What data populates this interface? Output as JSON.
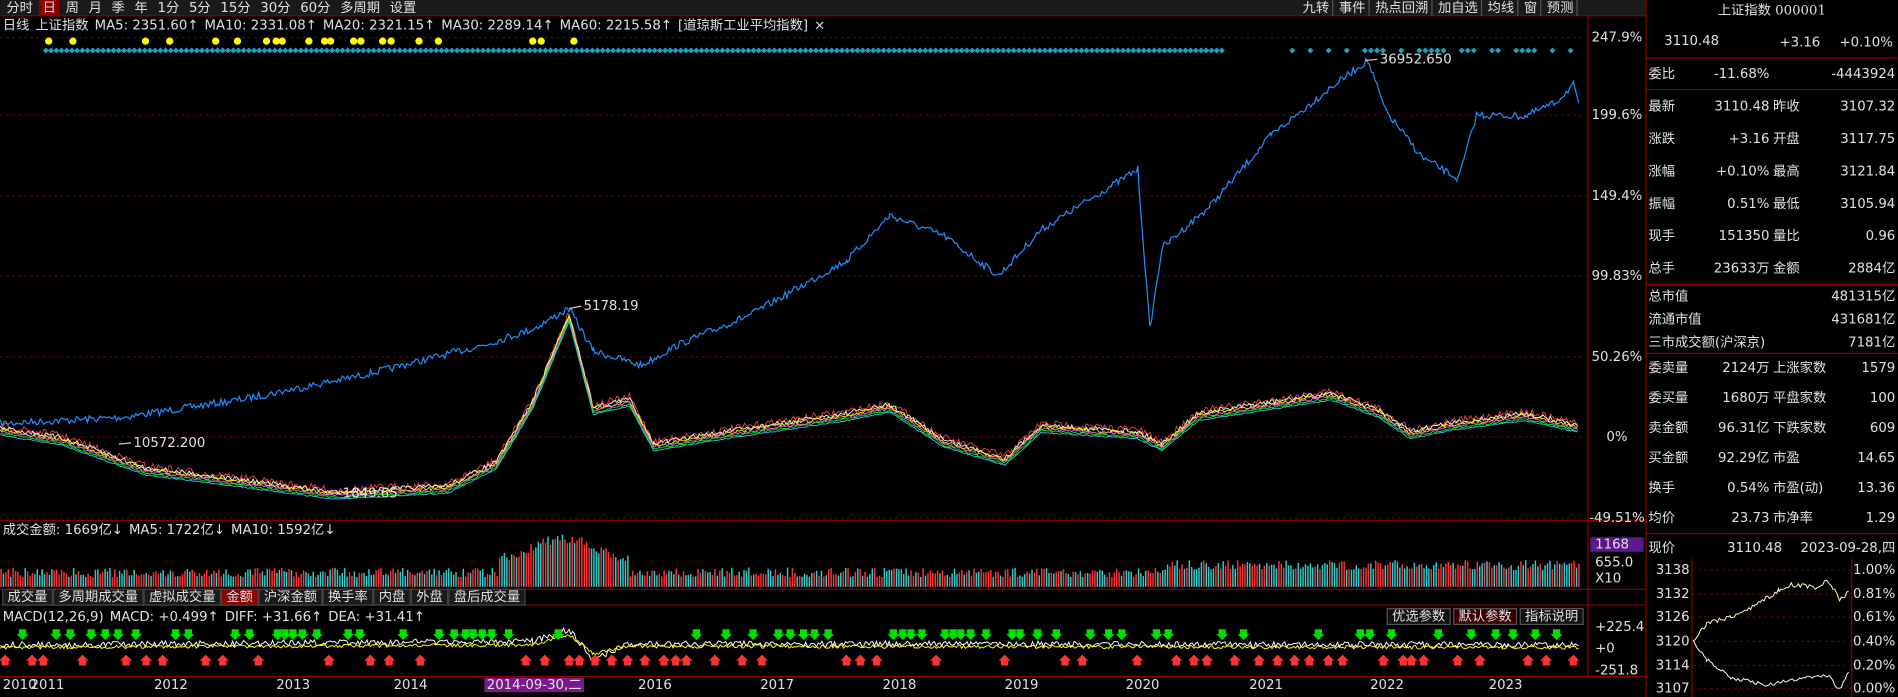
{
  "toolbar": {
    "periods": [
      "分时",
      "日",
      "周",
      "月",
      "季",
      "年",
      "1分",
      "5分",
      "15分",
      "30分",
      "60分",
      "多周期",
      "设置"
    ],
    "active": 1,
    "right_buttons": [
      "九转",
      "事件",
      "热点回溯",
      "加自选",
      "均线",
      "窗",
      "预测"
    ]
  },
  "main": {
    "legend": [
      {
        "text": "日线",
        "color": "#e0e0e0"
      },
      {
        "text": "上证指数",
        "color": "#e0e0e0"
      },
      {
        "text": "MA5: 2351.60↑",
        "color": "#ffffff"
      },
      {
        "text": "MA10: 2331.08↑",
        "color": "#ffff00"
      },
      {
        "text": "MA20: 2321.15↑",
        "color": "#ff66ff"
      },
      {
        "text": "MA30: 2289.14↑",
        "color": "#00ff00"
      },
      {
        "text": "MA60: 2215.58↑",
        "color": "#33ccff"
      },
      {
        "text": "[道琼斯工业平均指数]",
        "color": "#3399ff"
      },
      {
        "text": "×",
        "color": "#999999"
      }
    ],
    "axis_labels": [
      "247.9%",
      "199.6%",
      "149.4%",
      "99.83%",
      "50.26%",
      "0%",
      "-49.51%"
    ],
    "annotations": [
      "36952.650",
      "5178.19",
      "10572.200",
      "1849.65"
    ]
  },
  "volume": {
    "legend": [
      {
        "text": "成交金额: 1669亿↓",
        "color": "#ff4444"
      },
      {
        "text": "MA5: 1722亿↓",
        "color": "#ffffff"
      },
      {
        "text": "MA10: 1592亿↓",
        "color": "#ffff00"
      }
    ],
    "axis_labels": [
      "1168",
      "655.0",
      "X10"
    ]
  },
  "tabs": {
    "items": [
      "成交量",
      "多周期成交量",
      "虚拟成交量",
      "金额",
      "沪深金额",
      "换手率",
      "内盘",
      "外盘",
      "盘后成交量"
    ],
    "active": 3
  },
  "macd": {
    "legend": [
      {
        "text": "MACD(12,26,9)",
        "color": "#e0e0e0"
      },
      {
        "text": "MACD: +0.499↑",
        "color": "#ff4444"
      },
      {
        "text": "DIFF: +31.66↑",
        "color": "#ffffff"
      },
      {
        "text": "DEA: +31.41↑",
        "color": "#ffff00"
      }
    ],
    "buttons": [
      "优选参数",
      "默认参数",
      "指标说明"
    ],
    "axis_labels": [
      "+225.4",
      "+0",
      "-251.8"
    ]
  },
  "x_axis": {
    "labels": [
      "2010",
      "2011",
      "2012",
      "2013",
      "2014",
      "2014-09-30,二",
      "2016",
      "2017",
      "2018",
      "2019",
      "2020",
      "2021",
      "2022",
      "2023"
    ],
    "highlight": 5
  },
  "panel": {
    "title": "上证指数 000001",
    "price": "3110.48",
    "change": "+3.16",
    "change_pct": "+0.10%",
    "webi": {
      "label": "委比",
      "pct": "-11.68%",
      "diff": "-4443924"
    },
    "quote_rows": [
      [
        "最新",
        "3110.48",
        "#ff4444",
        "昨收",
        "3107.32",
        "#ffffff"
      ],
      [
        "涨跌",
        "+3.16",
        "#ff4444",
        "开盘",
        "3117.75",
        "#ff4444"
      ],
      [
        "涨幅",
        "+0.10%",
        "#ff4444",
        "最高",
        "3121.84",
        "#ff4444"
      ],
      [
        "振幅",
        "0.51%",
        "#33ccff",
        "最低",
        "3105.94",
        "#00ff00"
      ],
      [
        "现手",
        "151350",
        "#33ccff",
        "量比",
        "0.96",
        "#00ff00"
      ],
      [
        "总手",
        "23633万",
        "#ffffff",
        "金额",
        "2884亿",
        "#33ccff"
      ]
    ],
    "market_rows": [
      [
        "总市值",
        "481315亿"
      ],
      [
        "流通市值",
        "431681亿"
      ],
      [
        "三市成交额(沪深京)",
        "7181亿"
      ]
    ],
    "order_rows": [
      [
        "委卖量",
        "2124万",
        "#33ccff",
        "上涨家数",
        "1579",
        "#ff4444"
      ],
      [
        "委买量",
        "1680万",
        "#ff4444",
        "平盘家数",
        "100",
        "#ffffff"
      ],
      [
        "卖金额",
        "96.31亿",
        "#33ccff",
        "下跌家数",
        "609",
        "#00ff00"
      ],
      [
        "买金额",
        "92.29亿",
        "#33ccff",
        "市盈",
        "14.65",
        "#ffffff"
      ],
      [
        "换手",
        "0.54%",
        "#33ccff",
        "市盈(动)",
        "13.36",
        "#ffffff"
      ],
      [
        "均价",
        "23.73",
        "#ffff00",
        "市净率",
        "1.29",
        "#ffffff"
      ]
    ],
    "mini": {
      "label": "现价",
      "price": "3110.48",
      "date": "2023-09-28,四",
      "left_axis": [
        "3138",
        "3132",
        "3126",
        "3120",
        "3114",
        "3107"
      ],
      "right_axis": [
        "1.00%",
        "0.81%",
        "0.61%",
        "0.40%",
        "0.20%",
        "0.00%"
      ]
    }
  }
}
